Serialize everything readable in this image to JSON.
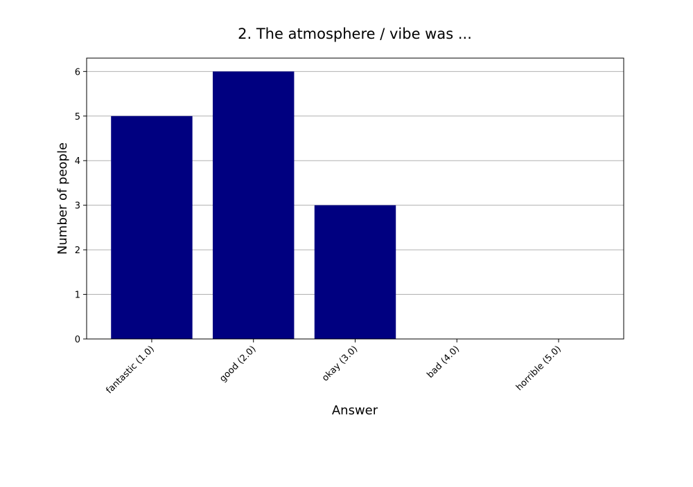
{
  "chart_data": {
    "type": "bar",
    "title": "2. The atmosphere / vibe was ...",
    "xlabel": "Answer",
    "ylabel": "Number of people",
    "categories": [
      "fantastic (1.0)",
      "good (2.0)",
      "okay (3.0)",
      "bad (4.0)",
      "horrible (5.0)"
    ],
    "values": [
      5,
      6,
      3,
      0,
      0
    ],
    "ylim": [
      0,
      6.3
    ],
    "yticks": [
      0,
      1,
      2,
      3,
      4,
      5,
      6
    ],
    "grid": "y-axis horizontal gridlines",
    "bar_color": "#000080",
    "legend": "none"
  }
}
